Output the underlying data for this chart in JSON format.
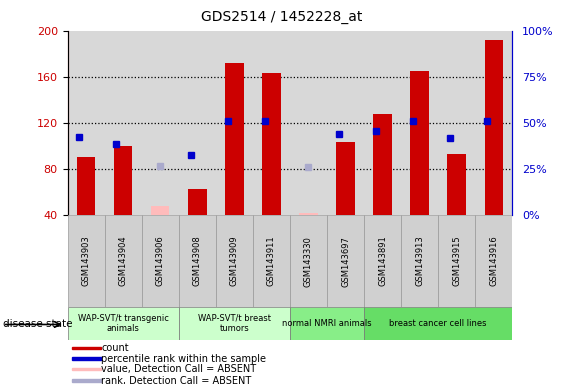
{
  "title": "GDS2514 / 1452228_at",
  "samples": [
    "GSM143903",
    "GSM143904",
    "GSM143906",
    "GSM143908",
    "GSM143909",
    "GSM143911",
    "GSM143330",
    "GSM143697",
    "GSM143891",
    "GSM143913",
    "GSM143915",
    "GSM143916"
  ],
  "count_values": [
    90,
    100,
    null,
    63,
    172,
    163,
    null,
    103,
    128,
    165,
    93,
    192
  ],
  "count_absent": [
    null,
    null,
    48,
    null,
    null,
    null,
    42,
    null,
    null,
    null,
    null,
    null
  ],
  "rank_values": [
    108,
    102,
    null,
    92,
    122,
    122,
    null,
    110,
    113,
    122,
    107,
    122
  ],
  "rank_absent": [
    null,
    null,
    83,
    null,
    null,
    null,
    82,
    null,
    null,
    null,
    null,
    null
  ],
  "ylim": [
    40,
    200
  ],
  "right_ylim": [
    0,
    100
  ],
  "yticks_left": [
    40,
    80,
    120,
    160,
    200
  ],
  "yticks_right": [
    0,
    25,
    50,
    75,
    100
  ],
  "ytick_labels_right": [
    "0%",
    "25%",
    "50%",
    "75%",
    "100%"
  ],
  "bar_color": "#cc0000",
  "absent_bar_color": "#ffbbbb",
  "rank_color": "#0000cc",
  "rank_absent_color": "#aaaacc",
  "sample_box_color": "#d0d0d0",
  "groups": [
    {
      "label": "WAP-SVT/t transgenic\nanimals",
      "start": 0,
      "end": 2,
      "color": "#ccffcc"
    },
    {
      "label": "WAP-SVT/t breast\ntumors",
      "start": 3,
      "end": 5,
      "color": "#ccffcc"
    },
    {
      "label": "normal NMRI animals",
      "start": 6,
      "end": 7,
      "color": "#88ee88"
    },
    {
      "label": "breast cancer cell lines",
      "start": 8,
      "end": 11,
      "color": "#66dd66"
    }
  ],
  "disease_state_label": "disease state",
  "legend_items": [
    {
      "label": "count",
      "color": "#cc0000"
    },
    {
      "label": "percentile rank within the sample",
      "color": "#0000cc"
    },
    {
      "label": "value, Detection Call = ABSENT",
      "color": "#ffbbbb"
    },
    {
      "label": "rank, Detection Call = ABSENT",
      "color": "#aaaacc"
    }
  ],
  "tick_color_left": "#cc0000",
  "tick_color_right": "#0000cc"
}
